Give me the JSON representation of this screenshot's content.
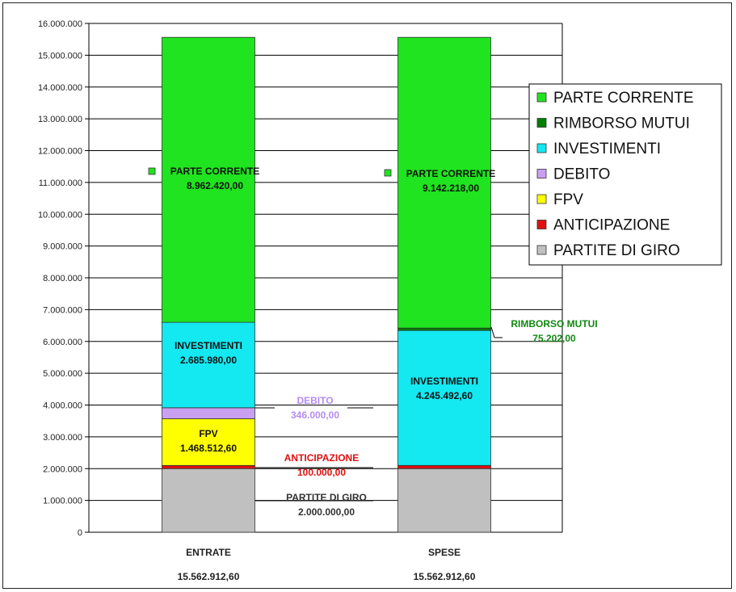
{
  "chart_data": {
    "type": "bar",
    "stacked": true,
    "categories": [
      "ENTRATE",
      "SPESE"
    ],
    "category_totals": [
      "15.562.912,60",
      "15.562.912,60"
    ],
    "ylim": [
      0,
      16000000
    ],
    "ytick_step": 1000000,
    "yticks": [
      "0",
      "1.000.000",
      "2.000.000",
      "3.000.000",
      "4.000.000",
      "5.000.000",
      "6.000.000",
      "7.000.000",
      "8.000.000",
      "9.000.000",
      "10.000.000",
      "11.000.000",
      "12.000.000",
      "13.000.000",
      "14.000.000",
      "15.000.000",
      "16.000.000"
    ],
    "grid": true,
    "legend_position": "right",
    "series": [
      {
        "name": "PARTITE DI GIRO",
        "color": "#C0C0C0",
        "values": [
          2000000.0,
          2000000.0
        ]
      },
      {
        "name": "ANTICIPAZIONE",
        "color": "#E01010",
        "values": [
          100000.0,
          100000.0
        ]
      },
      {
        "name": "FPV",
        "color": "#FFFF00",
        "values": [
          1468512.6,
          0
        ]
      },
      {
        "name": "DEBITO",
        "color": "#C9A0F0",
        "values": [
          346000.0,
          0
        ]
      },
      {
        "name": "INVESTIMENTI",
        "color": "#14E8F0",
        "values": [
          2685980.0,
          4245492.6
        ]
      },
      {
        "name": "RIMBORSO MUTUI",
        "color": "#008000",
        "values": [
          0,
          75202.0
        ]
      },
      {
        "name": "PARTE CORRENTE",
        "color": "#1FE41F",
        "values": [
          8962420.0,
          9142218.0
        ]
      }
    ],
    "legend": [
      "PARTE CORRENTE",
      "RIMBORSO MUTUI",
      "INVESTIMENTI",
      "DEBITO",
      "FPV",
      "ANTICIPAZIONE",
      "PARTITE DI GIRO"
    ],
    "annotations": [
      {
        "text": "PARTE CORRENTE",
        "value": "8.962.420,00",
        "color": "#111111"
      },
      {
        "text": "PARTE CORRENTE",
        "value": "9.142.218,00",
        "color": "#111111"
      },
      {
        "text": "INVESTIMENTI",
        "value": "2.685.980,00",
        "color": "#111111"
      },
      {
        "text": "INVESTIMENTI",
        "value": "4.245.492,60",
        "color": "#111111"
      },
      {
        "text": "FPV",
        "value": "1.468.512,60",
        "color": "#111111"
      },
      {
        "text": "DEBITO",
        "value": "346.000,00",
        "color": "#B58CF0"
      },
      {
        "text": "ANTICIPAZIONE",
        "value": "100.000,00",
        "color": "#E01010"
      },
      {
        "text": "PARTITE DI GIRO",
        "value": "2.000.000,00",
        "color": "#333333"
      },
      {
        "text": "RIMBORSO MUTUI",
        "value": "75.202,00",
        "color": "#118811"
      }
    ]
  }
}
